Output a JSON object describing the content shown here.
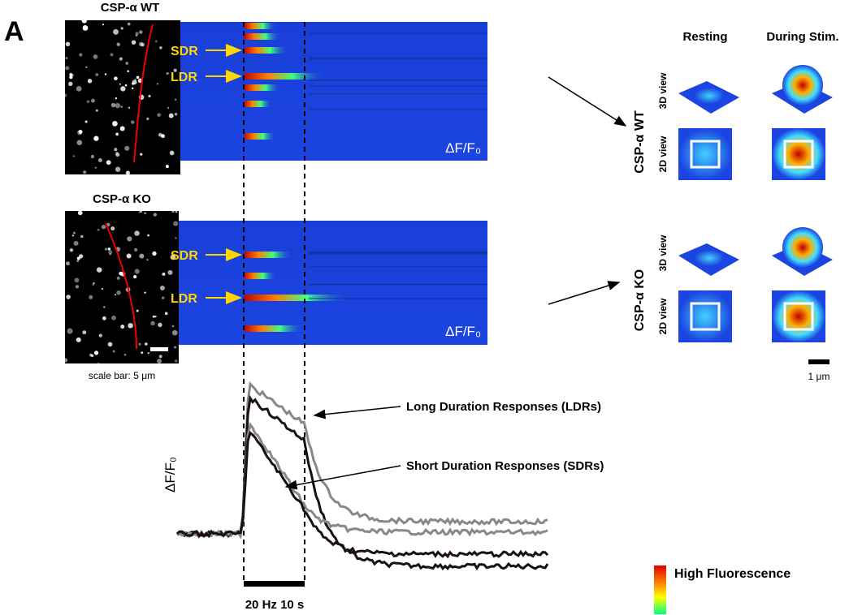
{
  "panel_label": "A",
  "rows": [
    {
      "label": "CSP-α WT",
      "markers": [
        "SDR",
        "LDR"
      ],
      "unit": "ΔF/F₀"
    },
    {
      "label": "CSP-α KO",
      "markers": [
        "SDR",
        "LDR"
      ],
      "unit": "ΔF/F₀"
    }
  ],
  "scale_bar": "scale bar: 5 μm",
  "insets": {
    "columns": [
      "Resting",
      "During Stim."
    ],
    "rows": [
      {
        "label": "CSP-α WT",
        "views": [
          "3D view",
          "2D view"
        ]
      },
      {
        "label": "CSP-α KO",
        "views": [
          "3D view",
          "2D view"
        ]
      }
    ],
    "scale_bar": "1 μm"
  },
  "traces": {
    "y_label": "ΔF/F₀",
    "annotations": [
      "Long Duration Responses (LDRs)",
      "Short Duration Responses (SDRs)"
    ],
    "stimulus": "20 Hz 10 s"
  },
  "legend": {
    "label": "High Fluorescence"
  }
}
